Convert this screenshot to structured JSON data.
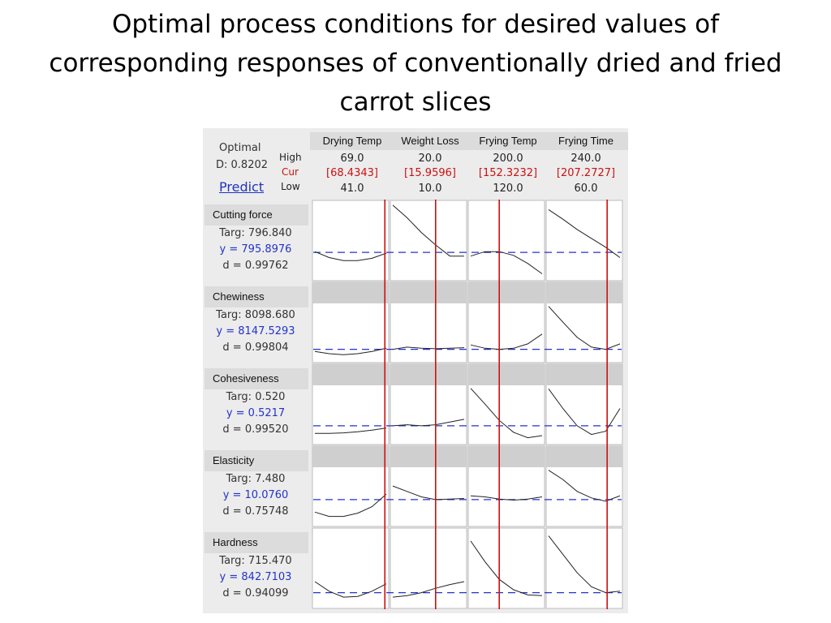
{
  "slide": {
    "title": "Optimal process conditions for desired values of corresponding responses of conventionally dried and fried carrot slices"
  },
  "optimizer": {
    "optimal_label": "Optimal",
    "d_label": "D: 0.8202",
    "predict_label": "Predict",
    "high_label": "High",
    "cur_label": "Cur",
    "low_label": "Low"
  },
  "colors": {
    "current_line": "#cc1111",
    "target_line": "#2233cc",
    "curve": "#222222",
    "band": "#cfcfcf"
  },
  "chart_data": {
    "type": "line",
    "factors": [
      {
        "name": "Drying Temp",
        "high": "69.0",
        "cur": "[68.4343]",
        "low": "41.0",
        "cur_fraction": 0.98
      },
      {
        "name": "Weight Loss",
        "high": "20.0",
        "cur": "[15.9596]",
        "low": "10.0",
        "cur_fraction": 0.6
      },
      {
        "name": "Frying Temp",
        "high": "200.0",
        "cur": "[152.3232]",
        "low": "120.0",
        "cur_fraction": 0.4
      },
      {
        "name": "Frying Time",
        "high": "240.0",
        "cur": "[207.2727]",
        "low": "60.0",
        "cur_fraction": 0.82
      }
    ],
    "responses": [
      {
        "name": "Cutting force",
        "targ": "Targ: 796.840",
        "y": "y = 795.8976",
        "d": "d = 0.99762",
        "has_band": false,
        "target_level": 0.35,
        "curves": [
          [
            [
              0,
              0.36
            ],
            [
              0.2,
              0.28
            ],
            [
              0.4,
              0.24
            ],
            [
              0.6,
              0.24
            ],
            [
              0.8,
              0.27
            ],
            [
              1,
              0.34
            ]
          ],
          [
            [
              0,
              0.99
            ],
            [
              0.2,
              0.82
            ],
            [
              0.4,
              0.62
            ],
            [
              0.6,
              0.45
            ],
            [
              0.8,
              0.3
            ],
            [
              1,
              0.3
            ]
          ],
          [
            [
              0,
              0.3
            ],
            [
              0.2,
              0.36
            ],
            [
              0.4,
              0.36
            ],
            [
              0.6,
              0.31
            ],
            [
              0.8,
              0.2
            ],
            [
              1,
              0.06
            ]
          ],
          [
            [
              0,
              0.93
            ],
            [
              0.2,
              0.8
            ],
            [
              0.4,
              0.66
            ],
            [
              0.6,
              0.54
            ],
            [
              0.8,
              0.42
            ],
            [
              1,
              0.28
            ]
          ]
        ]
      },
      {
        "name": "Chewiness",
        "targ": "Targ: 8098.680",
        "y": "y = 8147.5293",
        "d": "d = 0.99804",
        "has_band": true,
        "target_level": 0.2,
        "curves": [
          [
            [
              0,
              0.16
            ],
            [
              0.2,
              0.12
            ],
            [
              0.4,
              0.1
            ],
            [
              0.6,
              0.12
            ],
            [
              0.8,
              0.16
            ],
            [
              1,
              0.22
            ]
          ],
          [
            [
              0,
              0.2
            ],
            [
              0.2,
              0.24
            ],
            [
              0.4,
              0.22
            ],
            [
              0.6,
              0.21
            ],
            [
              0.8,
              0.22
            ],
            [
              1,
              0.23
            ]
          ],
          [
            [
              0,
              0.28
            ],
            [
              0.2,
              0.22
            ],
            [
              0.4,
              0.2
            ],
            [
              0.6,
              0.22
            ],
            [
              0.8,
              0.3
            ],
            [
              1,
              0.48
            ]
          ],
          [
            [
              0,
              0.99
            ],
            [
              0.2,
              0.7
            ],
            [
              0.4,
              0.42
            ],
            [
              0.6,
              0.24
            ],
            [
              0.8,
              0.2
            ],
            [
              1,
              0.3
            ]
          ]
        ]
      },
      {
        "name": "Cohesiveness",
        "targ": "Targ: 0.520",
        "y": "y = 0.5217",
        "d": "d = 0.99520",
        "has_band": true,
        "target_level": 0.3,
        "curves": [
          [
            [
              0,
              0.16
            ],
            [
              0.2,
              0.16
            ],
            [
              0.4,
              0.17
            ],
            [
              0.6,
              0.19
            ],
            [
              0.8,
              0.22
            ],
            [
              1,
              0.26
            ]
          ],
          [
            [
              0,
              0.3
            ],
            [
              0.2,
              0.32
            ],
            [
              0.4,
              0.3
            ],
            [
              0.6,
              0.32
            ],
            [
              0.8,
              0.37
            ],
            [
              1,
              0.42
            ]
          ],
          [
            [
              0,
              0.99
            ],
            [
              0.2,
              0.7
            ],
            [
              0.4,
              0.4
            ],
            [
              0.6,
              0.18
            ],
            [
              0.8,
              0.08
            ],
            [
              1,
              0.12
            ]
          ],
          [
            [
              0,
              0.98
            ],
            [
              0.2,
              0.62
            ],
            [
              0.4,
              0.3
            ],
            [
              0.6,
              0.14
            ],
            [
              0.8,
              0.2
            ],
            [
              1,
              0.62
            ]
          ]
        ]
      },
      {
        "name": "Elasticity",
        "targ": "Targ: 7.480",
        "y": "y = 10.0760",
        "d": "d = 0.75748",
        "has_band": true,
        "target_level": 0.45,
        "curves": [
          [
            [
              0,
              0.22
            ],
            [
              0.2,
              0.14
            ],
            [
              0.4,
              0.14
            ],
            [
              0.6,
              0.2
            ],
            [
              0.8,
              0.32
            ],
            [
              1,
              0.55
            ]
          ],
          [
            [
              0,
              0.7
            ],
            [
              0.2,
              0.6
            ],
            [
              0.4,
              0.5
            ],
            [
              0.6,
              0.45
            ],
            [
              0.8,
              0.46
            ],
            [
              1,
              0.47
            ]
          ],
          [
            [
              0,
              0.52
            ],
            [
              0.2,
              0.5
            ],
            [
              0.4,
              0.46
            ],
            [
              0.6,
              0.44
            ],
            [
              0.8,
              0.46
            ],
            [
              1,
              0.5
            ]
          ],
          [
            [
              0,
              0.99
            ],
            [
              0.2,
              0.82
            ],
            [
              0.4,
              0.6
            ],
            [
              0.6,
              0.48
            ],
            [
              0.8,
              0.42
            ],
            [
              1,
              0.52
            ]
          ]
        ]
      },
      {
        "name": "Hardness",
        "targ": "Targ: 715.470",
        "y": "y = 842.7103",
        "d": "d = 0.94099",
        "has_band": false,
        "target_level": 0.18,
        "curves": [
          [
            [
              0,
              0.33
            ],
            [
              0.2,
              0.2
            ],
            [
              0.4,
              0.12
            ],
            [
              0.6,
              0.13
            ],
            [
              0.8,
              0.2
            ],
            [
              1,
              0.3
            ]
          ],
          [
            [
              0,
              0.12
            ],
            [
              0.2,
              0.14
            ],
            [
              0.4,
              0.18
            ],
            [
              0.6,
              0.24
            ],
            [
              0.8,
              0.29
            ],
            [
              1,
              0.33
            ]
          ],
          [
            [
              0,
              0.88
            ],
            [
              0.2,
              0.6
            ],
            [
              0.4,
              0.36
            ],
            [
              0.6,
              0.22
            ],
            [
              0.8,
              0.15
            ],
            [
              1,
              0.14
            ]
          ],
          [
            [
              0,
              0.95
            ],
            [
              0.2,
              0.7
            ],
            [
              0.4,
              0.45
            ],
            [
              0.6,
              0.26
            ],
            [
              0.8,
              0.18
            ],
            [
              1,
              0.2
            ]
          ]
        ]
      }
    ]
  }
}
